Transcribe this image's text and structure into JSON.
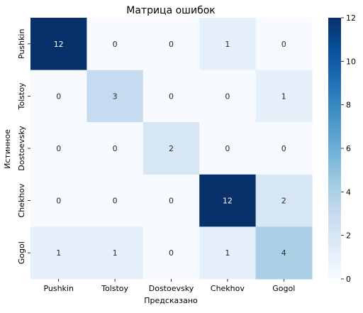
{
  "chart_data": {
    "type": "heatmap",
    "title": "Матрица ошибок",
    "xlabel": "Предсказано",
    "ylabel": "Истинное",
    "x_categories": [
      "Pushkin",
      "Tolstoy",
      "Dostoevsky",
      "Chekhov",
      "Gogol"
    ],
    "y_categories": [
      "Pushkin",
      "Tolstoy",
      "Dostoevsky",
      "Chekhov",
      "Gogol"
    ],
    "values": [
      [
        12,
        0,
        0,
        1,
        0
      ],
      [
        0,
        3,
        0,
        0,
        1
      ],
      [
        0,
        0,
        2,
        0,
        0
      ],
      [
        0,
        0,
        0,
        12,
        2
      ],
      [
        1,
        1,
        0,
        1,
        4
      ]
    ],
    "colorbar": {
      "min": 0,
      "max": 12,
      "ticks": [
        0,
        2,
        4,
        6,
        8,
        10,
        12
      ]
    },
    "colormap": "Blues",
    "colors": {
      "low": "#f7fbff",
      "high": "#08306b",
      "text_dark": "#262626",
      "text_light": "#ffffff"
    }
  }
}
